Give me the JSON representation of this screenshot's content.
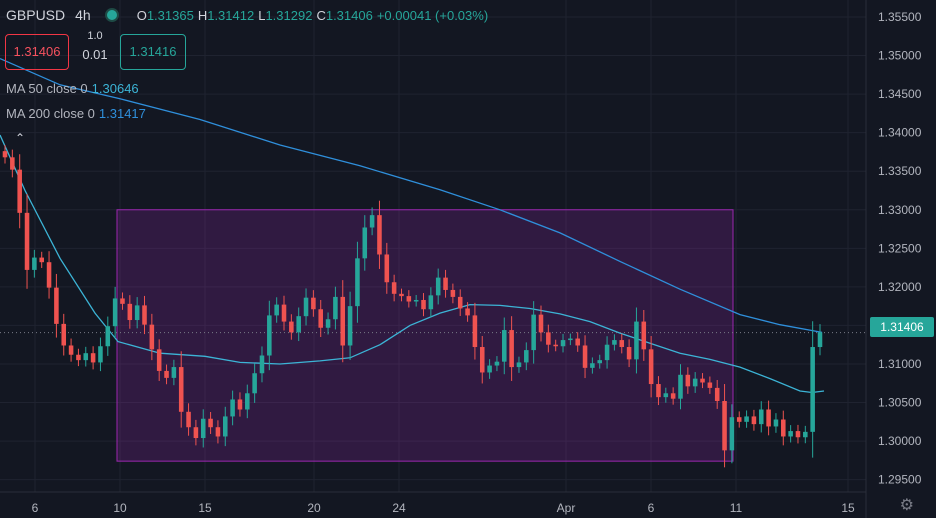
{
  "header": {
    "symbol": "GBPUSD",
    "timeframe": "4h",
    "o_label": "O",
    "o_value": "1.31365",
    "h_label": "H",
    "h_value": "1.31412",
    "l_label": "L",
    "l_value": "1.31292",
    "c_label": "C",
    "c_value": "1.31406",
    "change": "+0.00041 (+0.03%)"
  },
  "trade": {
    "sell_price": "1.31406",
    "buy_price": "1.31416",
    "spread_top": "1.0",
    "spread_bottom": "0.01"
  },
  "indicators": {
    "ma50_label": "MA 50 close 0",
    "ma50_value": "1.30646",
    "ma200_label": "MA 200 close 0",
    "ma200_value": "1.31417",
    "collapse_icon": "chevron-up"
  },
  "price_axis": {
    "current_price": "1.31406",
    "current_color": "#26a69a",
    "ticks": [
      "1.35500",
      "1.35000",
      "1.34500",
      "1.34000",
      "1.33500",
      "1.33000",
      "1.32500",
      "1.32000",
      "1.31500",
      "1.31000",
      "1.30500",
      "1.30000",
      "1.29500"
    ]
  },
  "colors": {
    "up": "#26a69a",
    "down": "#ef5350",
    "ma50": "#3cb4d6",
    "ma200": "#2f8fdb",
    "zone_fill": "#9c27b0",
    "background": "#131722"
  },
  "chart_data": {
    "type": "candlestick",
    "symbol": "GBPUSD",
    "timeframe": "4h",
    "x_ticks": [
      "6",
      "10",
      "15",
      "20",
      "24",
      "Apr",
      "6",
      "11",
      "15"
    ],
    "x_tick_dates": [
      "2021-03-06",
      "2021-03-10",
      "2021-03-15",
      "2021-03-20",
      "2021-03-24",
      "2021-04-01",
      "2021-04-06",
      "2021-04-11",
      "2021-04-15"
    ],
    "y_ticks": [
      1.355,
      1.35,
      1.345,
      1.34,
      1.335,
      1.33,
      1.325,
      1.32,
      1.315,
      1.31,
      1.305,
      1.3,
      1.295
    ],
    "ylim": [
      1.2934,
      1.3572
    ],
    "closes": [
      1.3368,
      1.3352,
      1.3296,
      1.3222,
      1.3238,
      1.3232,
      1.3199,
      1.3152,
      1.3124,
      1.3112,
      1.3105,
      1.3114,
      1.3102,
      1.3123,
      1.3149,
      1.3185,
      1.3178,
      1.3157,
      1.3176,
      1.3151,
      1.3119,
      1.3091,
      1.3082,
      1.3096,
      1.3038,
      1.3018,
      1.3004,
      1.3029,
      1.3018,
      1.3006,
      1.3032,
      1.3054,
      1.3041,
      1.3062,
      1.3088,
      1.3111,
      1.3163,
      1.3177,
      1.3155,
      1.3141,
      1.3162,
      1.3186,
      1.3171,
      1.3147,
      1.3158,
      1.3187,
      1.3124,
      1.3175,
      1.3237,
      1.3277,
      1.3293,
      1.3242,
      1.3206,
      1.3191,
      1.3188,
      1.3181,
      1.3183,
      1.3171,
      1.3189,
      1.3212,
      1.3196,
      1.3187,
      1.3172,
      1.3163,
      1.3122,
      1.3089,
      1.3098,
      1.3103,
      1.3144,
      1.3096,
      1.3102,
      1.3118,
      1.3164,
      1.3141,
      1.3125,
      1.3123,
      1.3131,
      1.3133,
      1.3124,
      1.3095,
      1.3101,
      1.3105,
      1.3125,
      1.3131,
      1.3122,
      1.3106,
      1.3155,
      1.3119,
      1.3074,
      1.3057,
      1.3062,
      1.3055,
      1.3086,
      1.3071,
      1.3081,
      1.3076,
      1.3069,
      1.3052,
      1.2988,
      1.3031,
      1.3025,
      1.3032,
      1.3022,
      1.3041,
      1.3019,
      1.3028,
      1.3006,
      1.3013,
      1.3005,
      1.3012,
      1.3122,
      1.3141
    ],
    "ma50": [
      [
        0,
        1.3397
      ],
      [
        25,
        1.3325
      ],
      [
        60,
        1.3237
      ],
      [
        95,
        1.3166
      ],
      [
        118,
        1.3129
      ],
      [
        160,
        1.3114
      ],
      [
        205,
        1.311
      ],
      [
        240,
        1.3102
      ],
      [
        280,
        1.31
      ],
      [
        320,
        1.3104
      ],
      [
        350,
        1.3108
      ],
      [
        380,
        1.3125
      ],
      [
        410,
        1.315
      ],
      [
        440,
        1.3166
      ],
      [
        470,
        1.3177
      ],
      [
        500,
        1.3176
      ],
      [
        530,
        1.3172
      ],
      [
        560,
        1.3165
      ],
      [
        590,
        1.3155
      ],
      [
        620,
        1.314
      ],
      [
        650,
        1.3127
      ],
      [
        680,
        1.3114
      ],
      [
        710,
        1.3106
      ],
      [
        740,
        1.3096
      ],
      [
        770,
        1.3081
      ],
      [
        800,
        1.3065
      ],
      [
        812,
        1.3063
      ],
      [
        824,
        1.3065
      ]
    ],
    "ma200": [
      [
        0,
        1.3496
      ],
      [
        60,
        1.3462
      ],
      [
        120,
        1.3444
      ],
      [
        200,
        1.3417
      ],
      [
        280,
        1.3384
      ],
      [
        360,
        1.3357
      ],
      [
        440,
        1.3326
      ],
      [
        500,
        1.33
      ],
      [
        560,
        1.327
      ],
      [
        620,
        1.3233
      ],
      [
        680,
        1.3197
      ],
      [
        740,
        1.3164
      ],
      [
        780,
        1.3151
      ],
      [
        822,
        1.3141
      ]
    ],
    "zone": {
      "price_high": 1.33,
      "price_low": 1.2974,
      "start_date": "2021-03-10",
      "end_date": "2021-04-11"
    },
    "current_price": 1.31406
  }
}
